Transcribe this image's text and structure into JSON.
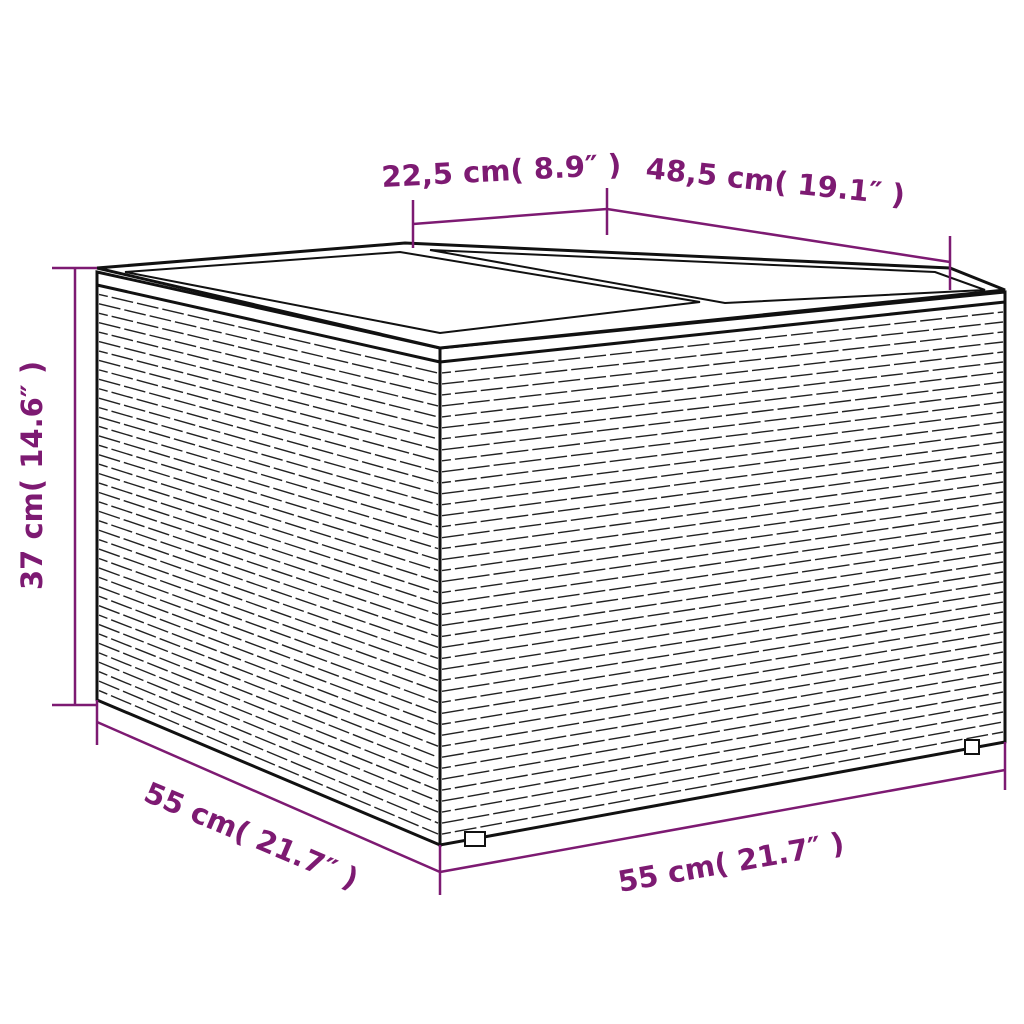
{
  "dimensions": {
    "top_left_segment": "22,5 cm( 8.9″ )",
    "top_right_segment": "48,5 cm( 19.1″ )",
    "height": "37 cm( 14.6″ )",
    "depth": "55 cm( 21.7″ )",
    "width": "55 cm( 21.7″ )"
  },
  "colors": {
    "dimension": "#7d1a72",
    "outline": "#111111"
  }
}
